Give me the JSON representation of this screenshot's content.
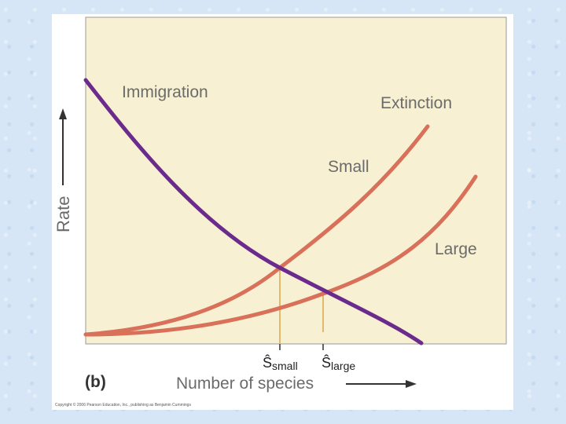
{
  "panel_label": "(b)",
  "x_axis_label": "Number of species",
  "y_axis_label": "Rate",
  "curves": {
    "immigration": "Immigration",
    "extinction": "Extinction",
    "small": "Small",
    "large": "Large"
  },
  "markers": {
    "small_symbol": "Ŝ",
    "small_subscript": "small",
    "large_symbol": "Ŝ",
    "large_subscript": "large"
  },
  "copyright": "Copyright © 2006 Pearson Education, Inc., publishing as Benjamin Cummings",
  "colors": {
    "plot_background": "#f7f0d2",
    "immigration_curve": "#6a2b8c",
    "extinction_curve": "#d8705a",
    "equilibrium_line": "#d8a84a",
    "axis_label_text": "#6b6b6b"
  }
}
